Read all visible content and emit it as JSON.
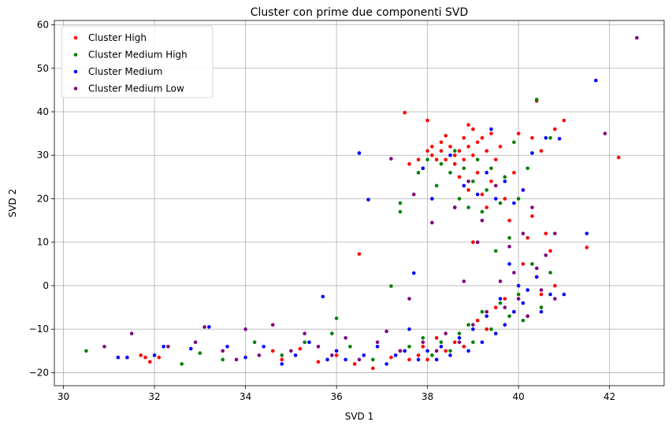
{
  "chart_data": {
    "type": "scatter",
    "title": "Cluster con prime due componenti SVD",
    "xlabel": "SVD 1",
    "ylabel": "SVD 2",
    "xlim": [
      29.8,
      43.2
    ],
    "ylim": [
      -23,
      61
    ],
    "xticks": [
      30,
      32,
      34,
      36,
      38,
      40,
      42
    ],
    "yticks": [
      -20,
      -10,
      0,
      10,
      20,
      30,
      40,
      50,
      60
    ],
    "grid": true,
    "legend_position": "top-left",
    "series": [
      {
        "name": "Cluster High",
        "color": "#ff0000",
        "points": [
          [
            31.7,
            -16
          ],
          [
            31.8,
            -16.5
          ],
          [
            31.9,
            -17.5
          ],
          [
            32.1,
            -16.5
          ],
          [
            34.6,
            -15
          ],
          [
            34.8,
            -17
          ],
          [
            35.2,
            -14.5
          ],
          [
            35.6,
            -17.5
          ],
          [
            36.0,
            -16
          ],
          [
            36.4,
            -18
          ],
          [
            36.5,
            7.3
          ],
          [
            36.8,
            -19
          ],
          [
            37.2,
            -16.5
          ],
          [
            37.4,
            -15
          ],
          [
            37.5,
            39.8
          ],
          [
            37.6,
            28
          ],
          [
            37.6,
            -17
          ],
          [
            37.8,
            29
          ],
          [
            37.8,
            -16
          ],
          [
            37.9,
            -14
          ],
          [
            38.0,
            38
          ],
          [
            38.0,
            31
          ],
          [
            38.0,
            -17
          ],
          [
            38.1,
            32
          ],
          [
            38.1,
            30
          ],
          [
            38.2,
            29
          ],
          [
            38.2,
            -12
          ],
          [
            38.3,
            33
          ],
          [
            38.3,
            31
          ],
          [
            38.4,
            34.5
          ],
          [
            38.4,
            29
          ],
          [
            38.4,
            -15
          ],
          [
            38.5,
            32
          ],
          [
            38.6,
            30
          ],
          [
            38.6,
            28
          ],
          [
            38.6,
            -13
          ],
          [
            38.7,
            31
          ],
          [
            38.7,
            25
          ],
          [
            38.8,
            34
          ],
          [
            38.8,
            29
          ],
          [
            38.8,
            -14
          ],
          [
            38.9,
            37
          ],
          [
            38.9,
            32
          ],
          [
            38.9,
            22
          ],
          [
            39.0,
            36
          ],
          [
            39.0,
            30
          ],
          [
            39.0,
            10
          ],
          [
            39.1,
            33
          ],
          [
            39.1,
            26
          ],
          [
            39.1,
            -8
          ],
          [
            39.2,
            34
          ],
          [
            39.2,
            21
          ],
          [
            39.3,
            31
          ],
          [
            39.3,
            18
          ],
          [
            39.3,
            -10
          ],
          [
            39.4,
            35
          ],
          [
            39.4,
            24
          ],
          [
            39.5,
            29
          ],
          [
            39.5,
            -5
          ],
          [
            39.6,
            32
          ],
          [
            39.7,
            20
          ],
          [
            39.7,
            -3
          ],
          [
            39.8,
            15
          ],
          [
            39.9,
            26
          ],
          [
            39.9,
            -6
          ],
          [
            40.0,
            35
          ],
          [
            40.1,
            22
          ],
          [
            40.1,
            5
          ],
          [
            40.2,
            11
          ],
          [
            40.2,
            -7
          ],
          [
            40.3,
            34
          ],
          [
            40.3,
            16
          ],
          [
            40.4,
            42.5
          ],
          [
            40.4,
            2
          ],
          [
            40.5,
            31
          ],
          [
            40.5,
            -2
          ],
          [
            40.6,
            12
          ],
          [
            40.7,
            8
          ],
          [
            40.8,
            36
          ],
          [
            40.8,
            0
          ],
          [
            41.0,
            38
          ],
          [
            41.5,
            8.8
          ],
          [
            42.2,
            29.5
          ]
        ]
      },
      {
        "name": "Cluster Medium High",
        "color": "#008000",
        "points": [
          [
            30.5,
            -15
          ],
          [
            32.6,
            -18
          ],
          [
            33.0,
            -15.5
          ],
          [
            33.5,
            -17
          ],
          [
            34.2,
            -13
          ],
          [
            34.8,
            -16
          ],
          [
            35.3,
            -13
          ],
          [
            35.9,
            -11
          ],
          [
            36.0,
            -7.5
          ],
          [
            36.3,
            -14
          ],
          [
            36.8,
            -17
          ],
          [
            37.2,
            -0.1
          ],
          [
            37.4,
            17
          ],
          [
            37.4,
            19
          ],
          [
            37.6,
            -14
          ],
          [
            37.8,
            26
          ],
          [
            37.9,
            -12
          ],
          [
            38.0,
            29
          ],
          [
            38.1,
            -16
          ],
          [
            38.2,
            23
          ],
          [
            38.3,
            28
          ],
          [
            38.3,
            -13
          ],
          [
            38.5,
            26
          ],
          [
            38.5,
            -15
          ],
          [
            38.6,
            31
          ],
          [
            38.7,
            20
          ],
          [
            38.7,
            -11
          ],
          [
            38.8,
            27
          ],
          [
            38.9,
            18
          ],
          [
            38.9,
            -9
          ],
          [
            39.0,
            24
          ],
          [
            39.0,
            -13
          ],
          [
            39.1,
            29
          ],
          [
            39.2,
            17
          ],
          [
            39.2,
            -6
          ],
          [
            39.3,
            22
          ],
          [
            39.4,
            27
          ],
          [
            39.4,
            -10
          ],
          [
            39.5,
            8
          ],
          [
            39.6,
            19
          ],
          [
            39.6,
            -4
          ],
          [
            39.7,
            25
          ],
          [
            39.8,
            11
          ],
          [
            39.8,
            -7
          ],
          [
            39.9,
            33
          ],
          [
            40.0,
            20
          ],
          [
            40.0,
            -2
          ],
          [
            40.1,
            -8
          ],
          [
            40.2,
            27
          ],
          [
            40.3,
            5
          ],
          [
            40.4,
            42.8
          ],
          [
            40.5,
            -5
          ],
          [
            40.7,
            34
          ],
          [
            40.7,
            3
          ]
        ]
      },
      {
        "name": "Cluster Medium",
        "color": "#0000ff",
        "points": [
          [
            31.2,
            -16.5
          ],
          [
            31.4,
            -16.5
          ],
          [
            32.0,
            -16
          ],
          [
            32.2,
            -14
          ],
          [
            32.8,
            -14.5
          ],
          [
            33.2,
            -9.5
          ],
          [
            33.6,
            -14
          ],
          [
            34.0,
            -16.5
          ],
          [
            34.4,
            -14
          ],
          [
            34.8,
            -18
          ],
          [
            35.1,
            -16
          ],
          [
            35.4,
            -13
          ],
          [
            35.7,
            -2.5
          ],
          [
            35.8,
            -17
          ],
          [
            36.0,
            -15
          ],
          [
            36.2,
            -17
          ],
          [
            36.5,
            30.5
          ],
          [
            36.6,
            -16
          ],
          [
            36.7,
            19.8
          ],
          [
            36.9,
            -14
          ],
          [
            37.1,
            -18
          ],
          [
            37.3,
            -16
          ],
          [
            37.5,
            -15
          ],
          [
            37.6,
            -10
          ],
          [
            37.7,
            2.9
          ],
          [
            37.8,
            -17
          ],
          [
            37.9,
            27
          ],
          [
            38.0,
            -15
          ],
          [
            38.1,
            20
          ],
          [
            38.2,
            -17
          ],
          [
            38.3,
            -14
          ],
          [
            38.5,
            30
          ],
          [
            38.5,
            -16
          ],
          [
            38.6,
            18
          ],
          [
            38.7,
            -12
          ],
          [
            38.8,
            23
          ],
          [
            38.9,
            -15
          ],
          [
            39.0,
            -10
          ],
          [
            39.1,
            21
          ],
          [
            39.2,
            -13
          ],
          [
            39.3,
            26
          ],
          [
            39.3,
            -7
          ],
          [
            39.4,
            36
          ],
          [
            39.5,
            -11
          ],
          [
            39.5,
            20
          ],
          [
            39.6,
            -3
          ],
          [
            39.7,
            -9
          ],
          [
            39.7,
            24
          ],
          [
            39.8,
            5
          ],
          [
            39.9,
            -6
          ],
          [
            39.9,
            19
          ],
          [
            40.0,
            0
          ],
          [
            40.1,
            -4
          ],
          [
            40.1,
            22
          ],
          [
            40.2,
            -1
          ],
          [
            40.3,
            30.5
          ],
          [
            40.4,
            2
          ],
          [
            40.5,
            -6
          ],
          [
            40.6,
            34
          ],
          [
            40.7,
            -2
          ],
          [
            40.9,
            33.8
          ],
          [
            41.0,
            -2
          ],
          [
            41.5,
            12
          ],
          [
            41.7,
            47.2
          ]
        ]
      },
      {
        "name": "Cluster Medium Low",
        "color": "#800080",
        "points": [
          [
            30.9,
            -14
          ],
          [
            31.5,
            -11
          ],
          [
            32.3,
            -14
          ],
          [
            32.9,
            -13
          ],
          [
            33.1,
            -9.5
          ],
          [
            33.5,
            -15
          ],
          [
            33.8,
            -17
          ],
          [
            34.0,
            -10
          ],
          [
            34.3,
            -16
          ],
          [
            34.6,
            -9
          ],
          [
            35.0,
            -15
          ],
          [
            35.3,
            -11
          ],
          [
            35.6,
            -14
          ],
          [
            35.9,
            -16
          ],
          [
            36.2,
            -12
          ],
          [
            36.5,
            -17
          ],
          [
            36.9,
            -13
          ],
          [
            37.1,
            -10.5
          ],
          [
            37.2,
            29.2
          ],
          [
            37.4,
            -15
          ],
          [
            37.6,
            -3
          ],
          [
            37.7,
            21
          ],
          [
            37.9,
            -13
          ],
          [
            38.1,
            14.5
          ],
          [
            38.2,
            -15
          ],
          [
            38.4,
            -11
          ],
          [
            38.6,
            18
          ],
          [
            38.7,
            -13
          ],
          [
            38.8,
            1
          ],
          [
            38.9,
            24
          ],
          [
            39.0,
            -9
          ],
          [
            39.1,
            10
          ],
          [
            39.2,
            15
          ],
          [
            39.3,
            -6
          ],
          [
            39.5,
            23
          ],
          [
            39.6,
            1
          ],
          [
            39.7,
            -5
          ],
          [
            39.8,
            9
          ],
          [
            39.9,
            3
          ],
          [
            40.0,
            -3
          ],
          [
            40.1,
            12
          ],
          [
            40.2,
            -7
          ],
          [
            40.3,
            18
          ],
          [
            40.4,
            4
          ],
          [
            40.5,
            -1
          ],
          [
            40.6,
            7
          ],
          [
            40.8,
            12
          ],
          [
            40.8,
            -3
          ],
          [
            41.9,
            35
          ],
          [
            42.6,
            57
          ]
        ]
      }
    ]
  }
}
